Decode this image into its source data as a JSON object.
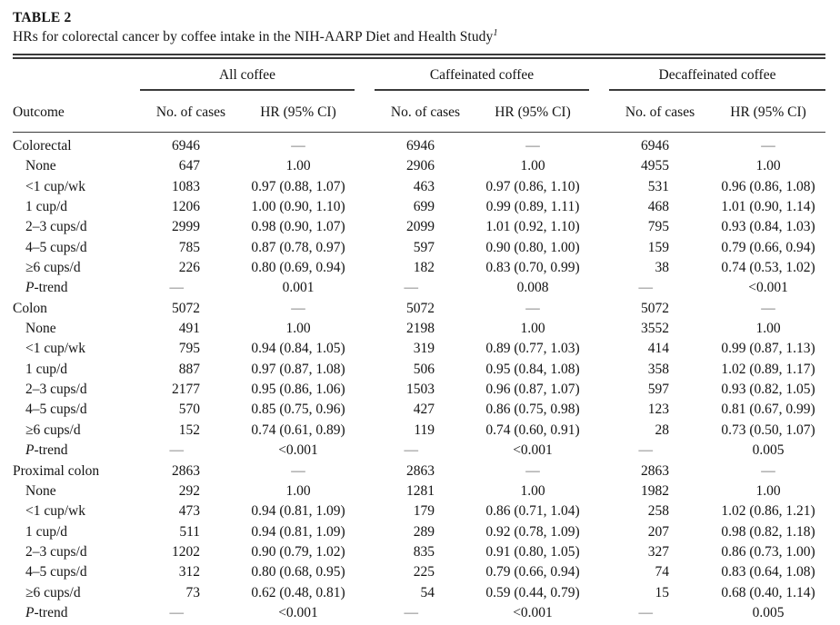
{
  "page": {
    "background": "#ffffff",
    "text_color": "#141414",
    "rule_color": "#3a3a3a",
    "dash_color": "#6a6a6a"
  },
  "table": {
    "label": "TABLE 2",
    "caption": "HRs for colorectal cancer by coffee intake in the NIH-AARP Diet and Health Study",
    "footnote_marker": "1",
    "column_groups": [
      "All coffee",
      "Caffeinated coffee",
      "Decaffeinated coffee"
    ],
    "outcome_header": "Outcome",
    "subheaders": [
      "No. of cases",
      "HR (95% CI)"
    ],
    "rows": [
      {
        "outcome": "Colorectal",
        "indent": false,
        "ptrend": false,
        "cells": [
          "6946",
          "—",
          "6946",
          "—",
          "6946",
          "—"
        ]
      },
      {
        "outcome": "None",
        "indent": true,
        "ptrend": false,
        "cells": [
          "647",
          "1.00",
          "2906",
          "1.00",
          "4955",
          "1.00"
        ]
      },
      {
        "outcome": "<1 cup/wk",
        "indent": true,
        "ptrend": false,
        "cells": [
          "1083",
          "0.97 (0.88, 1.07)",
          "463",
          "0.97 (0.86, 1.10)",
          "531",
          "0.96 (0.86, 1.08)"
        ]
      },
      {
        "outcome": "1 cup/d",
        "indent": true,
        "ptrend": false,
        "cells": [
          "1206",
          "1.00 (0.90, 1.10)",
          "699",
          "0.99 (0.89, 1.11)",
          "468",
          "1.01 (0.90, 1.14)"
        ]
      },
      {
        "outcome": "2–3 cups/d",
        "indent": true,
        "ptrend": false,
        "cells": [
          "2999",
          "0.98 (0.90, 1.07)",
          "2099",
          "1.01 (0.92, 1.10)",
          "795",
          "0.93 (0.84, 1.03)"
        ]
      },
      {
        "outcome": "4–5 cups/d",
        "indent": true,
        "ptrend": false,
        "cells": [
          "785",
          "0.87 (0.78, 0.97)",
          "597",
          "0.90 (0.80, 1.00)",
          "159",
          "0.79 (0.66, 0.94)"
        ]
      },
      {
        "outcome": "≥6 cups/d",
        "indent": true,
        "ptrend": false,
        "cells": [
          "226",
          "0.80 (0.69, 0.94)",
          "182",
          "0.83 (0.70, 0.99)",
          "38",
          "0.74 (0.53, 1.02)"
        ]
      },
      {
        "outcome": "P-trend",
        "indent": true,
        "ptrend": true,
        "cells": [
          "—",
          "0.001",
          "—",
          "0.008",
          "—",
          "<0.001"
        ]
      },
      {
        "outcome": "Colon",
        "indent": false,
        "ptrend": false,
        "cells": [
          "5072",
          "—",
          "5072",
          "—",
          "5072",
          "—"
        ]
      },
      {
        "outcome": "None",
        "indent": true,
        "ptrend": false,
        "cells": [
          "491",
          "1.00",
          "2198",
          "1.00",
          "3552",
          "1.00"
        ]
      },
      {
        "outcome": "<1 cup/wk",
        "indent": true,
        "ptrend": false,
        "cells": [
          "795",
          "0.94 (0.84, 1.05)",
          "319",
          "0.89 (0.77, 1.03)",
          "414",
          "0.99 (0.87, 1.13)"
        ]
      },
      {
        "outcome": "1 cup/d",
        "indent": true,
        "ptrend": false,
        "cells": [
          "887",
          "0.97 (0.87, 1.08)",
          "506",
          "0.95 (0.84, 1.08)",
          "358",
          "1.02 (0.89, 1.17)"
        ]
      },
      {
        "outcome": "2–3 cups/d",
        "indent": true,
        "ptrend": false,
        "cells": [
          "2177",
          "0.95 (0.86, 1.06)",
          "1503",
          "0.96 (0.87, 1.07)",
          "597",
          "0.93 (0.82, 1.05)"
        ]
      },
      {
        "outcome": "4–5 cups/d",
        "indent": true,
        "ptrend": false,
        "cells": [
          "570",
          "0.85 (0.75, 0.96)",
          "427",
          "0.86 (0.75, 0.98)",
          "123",
          "0.81 (0.67, 0.99)"
        ]
      },
      {
        "outcome": "≥6 cups/d",
        "indent": true,
        "ptrend": false,
        "cells": [
          "152",
          "0.74 (0.61, 0.89)",
          "119",
          "0.74 (0.60, 0.91)",
          "28",
          "0.73 (0.50, 1.07)"
        ]
      },
      {
        "outcome": "P-trend",
        "indent": true,
        "ptrend": true,
        "cells": [
          "—",
          "<0.001",
          "—",
          "<0.001",
          "—",
          "0.005"
        ]
      },
      {
        "outcome": "Proximal colon",
        "indent": false,
        "ptrend": false,
        "cells": [
          "2863",
          "—",
          "2863",
          "—",
          "2863",
          "—"
        ]
      },
      {
        "outcome": "None",
        "indent": true,
        "ptrend": false,
        "cells": [
          "292",
          "1.00",
          "1281",
          "1.00",
          "1982",
          "1.00"
        ]
      },
      {
        "outcome": "<1 cup/wk",
        "indent": true,
        "ptrend": false,
        "cells": [
          "473",
          "0.94 (0.81, 1.09)",
          "179",
          "0.86 (0.71, 1.04)",
          "258",
          "1.02 (0.86, 1.21)"
        ]
      },
      {
        "outcome": "1 cup/d",
        "indent": true,
        "ptrend": false,
        "cells": [
          "511",
          "0.94 (0.81, 1.09)",
          "289",
          "0.92 (0.78, 1.09)",
          "207",
          "0.98 (0.82, 1.18)"
        ]
      },
      {
        "outcome": "2–3 cups/d",
        "indent": true,
        "ptrend": false,
        "cells": [
          "1202",
          "0.90 (0.79, 1.02)",
          "835",
          "0.91 (0.80, 1.05)",
          "327",
          "0.86 (0.73, 1.00)"
        ]
      },
      {
        "outcome": "4–5 cups/d",
        "indent": true,
        "ptrend": false,
        "cells": [
          "312",
          "0.80 (0.68, 0.95)",
          "225",
          "0.79 (0.66, 0.94)",
          "74",
          "0.83 (0.64, 1.08)"
        ]
      },
      {
        "outcome": "≥6 cups/d",
        "indent": true,
        "ptrend": false,
        "cells": [
          "73",
          "0.62 (0.48, 0.81)",
          "54",
          "0.59 (0.44, 0.79)",
          "15",
          "0.68 (0.40, 1.14)"
        ]
      },
      {
        "outcome": "P-trend",
        "indent": true,
        "ptrend": true,
        "cells": [
          "—",
          "<0.001",
          "—",
          "<0.001",
          "—",
          "0.005"
        ]
      }
    ]
  }
}
